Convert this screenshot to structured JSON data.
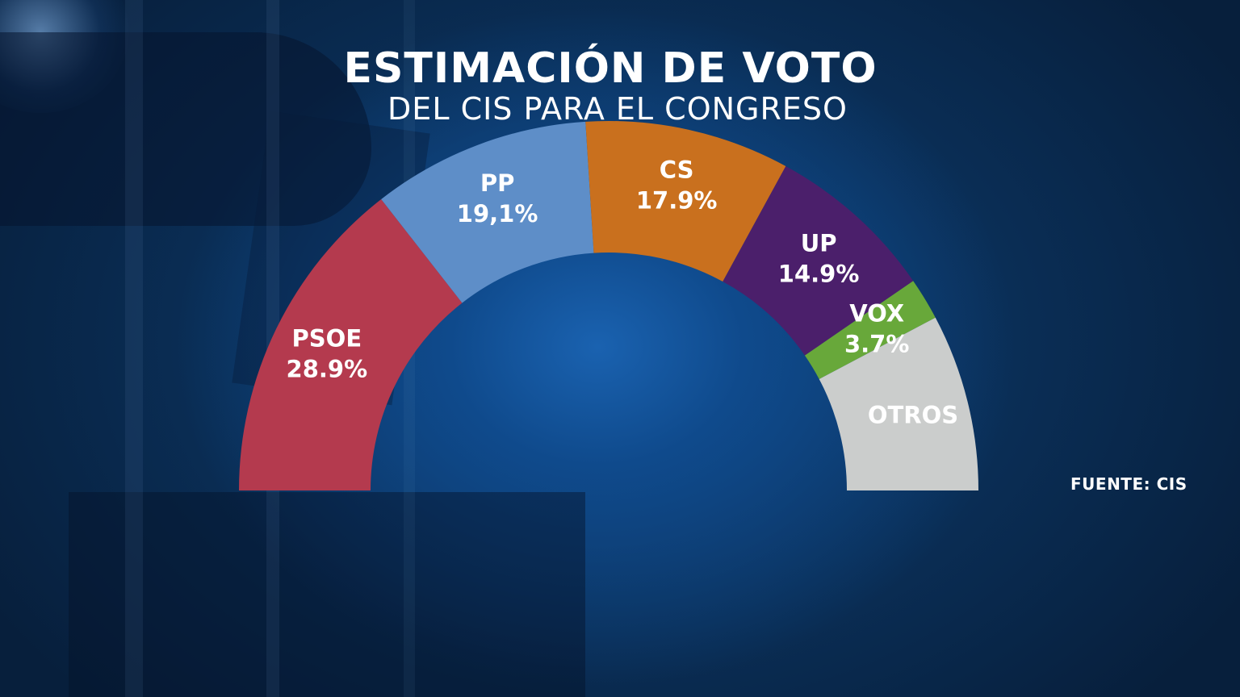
{
  "title": "ESTIMACIÓN DE VOTO",
  "subtitle": "DEL CIS PARA EL CONGRESO",
  "source": "FUENTE: CIS",
  "chart_data": {
    "type": "pie",
    "shape": "semicircle (hemicycle)",
    "legend": "none",
    "categories": [
      "PSOE",
      "PP",
      "CS",
      "UP",
      "VOX",
      "OTROS"
    ],
    "value_labels": [
      "28.9%",
      "19,1%",
      "17.9%",
      "14.9%",
      "3.7%",
      ""
    ],
    "values": [
      28.9,
      19.1,
      17.9,
      14.9,
      3.7,
      15.5
    ],
    "colors": [
      "#b43a4e",
      "#5e8ec8",
      "#c9701e",
      "#4b1f6b",
      "#68a83a",
      "#cbcdcc"
    ]
  }
}
